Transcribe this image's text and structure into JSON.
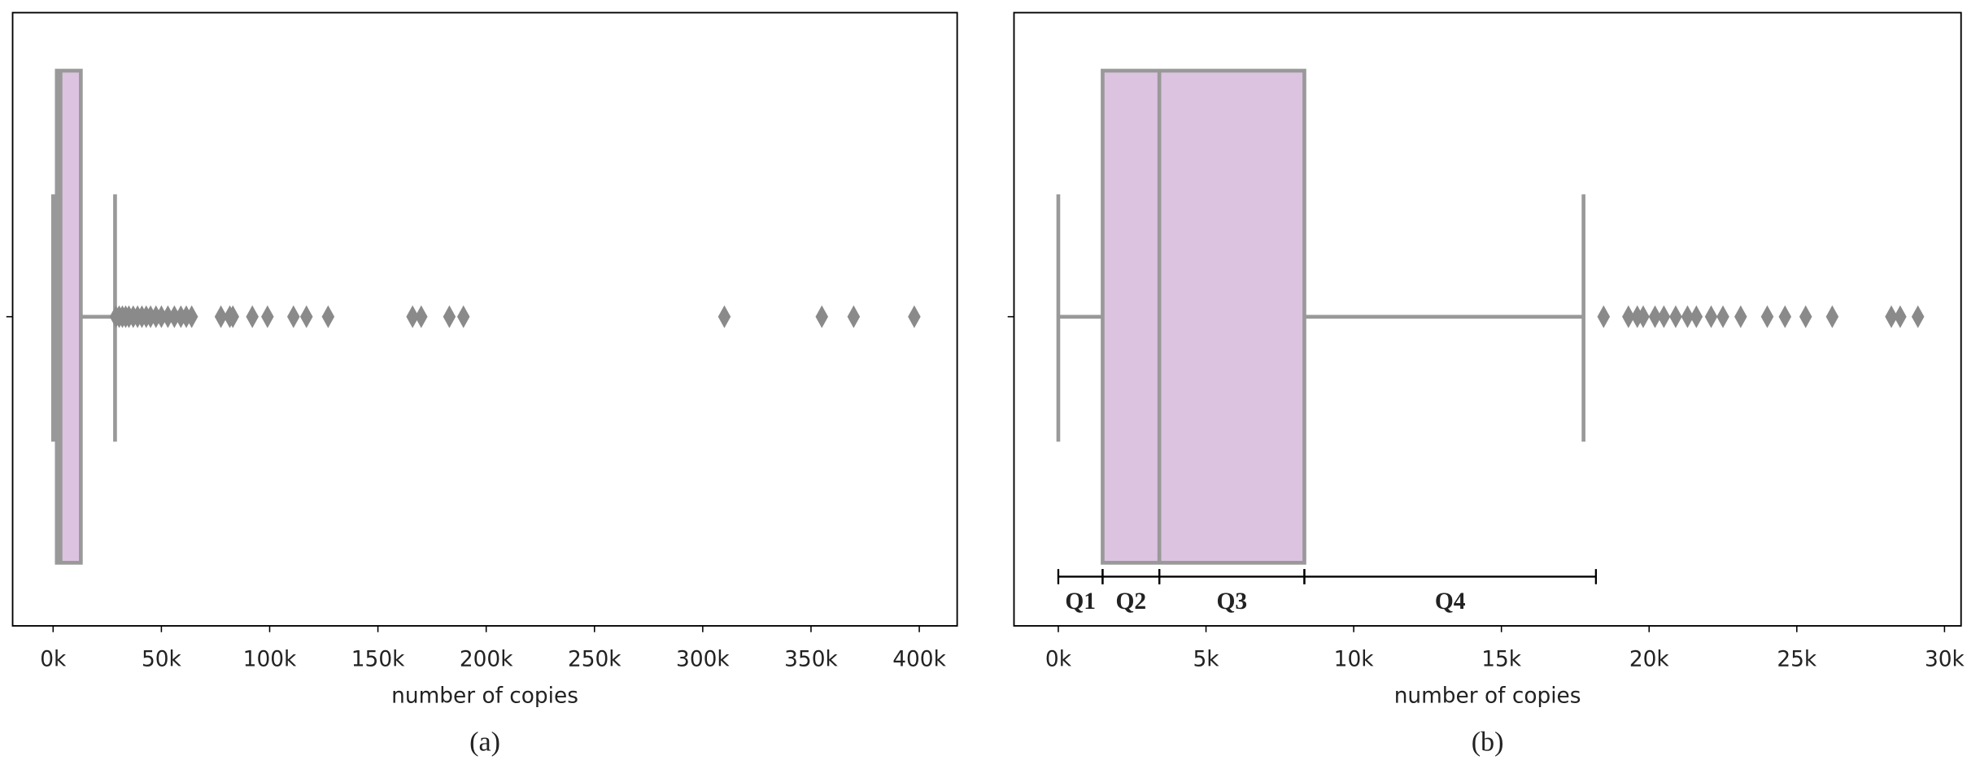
{
  "chart_data": [
    {
      "type": "box",
      "xlabel": "number of copies",
      "caption": "(a)",
      "xlim": [
        -18700,
        417500
      ],
      "xticks": [
        {
          "value": 0,
          "label": "0k"
        },
        {
          "value": 50000,
          "label": "50k"
        },
        {
          "value": 100000,
          "label": "100k"
        },
        {
          "value": 150000,
          "label": "150k"
        },
        {
          "value": 200000,
          "label": "200k"
        },
        {
          "value": 250000,
          "label": "250k"
        },
        {
          "value": 300000,
          "label": "300k"
        },
        {
          "value": 350000,
          "label": "350k"
        },
        {
          "value": 400000,
          "label": "400k"
        }
      ],
      "color": "#dcc3e0",
      "stats": {
        "whislo": 0,
        "q1": 1700,
        "med": 3400,
        "q3": 12800,
        "whishi": 28600
      },
      "outliers": [
        29000,
        30500,
        32000,
        33500,
        35000,
        37000,
        39000,
        41000,
        43000,
        45000,
        47500,
        50000,
        53000,
        56000,
        59000,
        61500,
        64000,
        77500,
        81600,
        83000,
        92000,
        99000,
        111000,
        117000,
        127000,
        166000,
        170000,
        183000,
        189500,
        310000,
        355000,
        369700,
        397700
      ]
    },
    {
      "type": "box",
      "xlabel": "number of copies",
      "caption": "(b)",
      "xlim": [
        -1500,
        30560
      ],
      "xticks": [
        {
          "value": 0,
          "label": "0k"
        },
        {
          "value": 5000,
          "label": "5k"
        },
        {
          "value": 10000,
          "label": "10k"
        },
        {
          "value": 15000,
          "label": "15k"
        },
        {
          "value": 20000,
          "label": "20k"
        },
        {
          "value": 25000,
          "label": "25k"
        },
        {
          "value": 30000,
          "label": "30k"
        }
      ],
      "color": "#dcc3e0",
      "stats": {
        "whislo": 0,
        "q1": 1500,
        "med": 3420,
        "q3": 8330,
        "whishi": 17780
      },
      "outliers": [
        18460,
        19300,
        19600,
        19800,
        20200,
        20500,
        20900,
        21300,
        21600,
        22100,
        22500,
        23100,
        24000,
        24600,
        25300,
        26200,
        28200,
        28500,
        29100
      ],
      "annotations": [
        {
          "label": "Q1",
          "from": 0,
          "to": 1500
        },
        {
          "label": "Q2",
          "from": 1500,
          "to": 3420
        },
        {
          "label": "Q3",
          "from": 3420,
          "to": 8330
        },
        {
          "label": "Q4",
          "from": 8330,
          "to": 18200
        }
      ]
    }
  ]
}
